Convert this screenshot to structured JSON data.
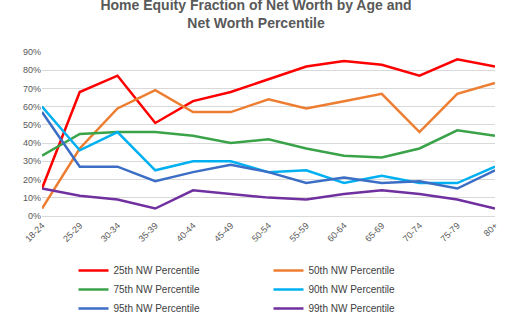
{
  "chart_data": {
    "type": "line",
    "title": "Home Equity Fraction of Net Worth by Age and Net Worth Percentile",
    "categories": [
      "18-24",
      "25-29",
      "30-34",
      "35-39",
      "40-44",
      "45-49",
      "50-54",
      "55-59",
      "60-64",
      "65-69",
      "70-74",
      "75-79",
      "80+"
    ],
    "series": [
      {
        "name": "25th NW Percentile",
        "color": "#ff0000",
        "values": [
          15,
          68,
          77,
          51,
          63,
          68,
          75,
          82,
          85,
          83,
          77,
          86,
          82
        ]
      },
      {
        "name": "50th NW Percentile",
        "color": "#ed7d31",
        "values": [
          4,
          37,
          59,
          69,
          57,
          57,
          64,
          59,
          63,
          67,
          46,
          67,
          73
        ]
      },
      {
        "name": "75th NW Percentile",
        "color": "#3aa34a",
        "values": [
          33,
          45,
          46,
          46,
          44,
          40,
          42,
          37,
          33,
          32,
          37,
          47,
          44
        ]
      },
      {
        "name": "90th NW Percentile",
        "color": "#00b0f0",
        "values": [
          60,
          36,
          46,
          25,
          30,
          30,
          24,
          25,
          18,
          22,
          18,
          18,
          27
        ]
      },
      {
        "name": "95th NW Percentile",
        "color": "#3b6ec4",
        "values": [
          57,
          27,
          27,
          19,
          24,
          28,
          24,
          18,
          21,
          18,
          19,
          15,
          25
        ]
      },
      {
        "name": "99th NW Percentile",
        "color": "#7030a0",
        "values": [
          15,
          11,
          9,
          4,
          14,
          12,
          10,
          9,
          12,
          14,
          12,
          9,
          4
        ]
      }
    ],
    "ylim": [
      0,
      90
    ],
    "yticks": [
      {
        "value": 0,
        "label": "0%"
      },
      {
        "value": 10,
        "label": "10%"
      },
      {
        "value": 20,
        "label": "20%"
      },
      {
        "value": 30,
        "label": "30%"
      },
      {
        "value": 40,
        "label": "40%"
      },
      {
        "value": 50,
        "label": "50%"
      },
      {
        "value": 60,
        "label": "60%"
      },
      {
        "value": 70,
        "label": "70%"
      },
      {
        "value": 80,
        "label": "80%"
      },
      {
        "value": 90,
        "label": "90%"
      }
    ],
    "grid": true,
    "legend": "bottom"
  }
}
